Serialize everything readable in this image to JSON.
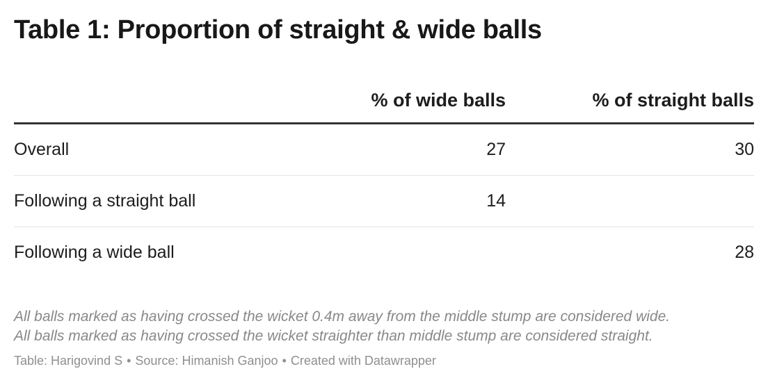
{
  "chart_data": {
    "type": "table",
    "title": "Table 1: Proportion of straight & wide balls",
    "columns": [
      "",
      "% of wide balls",
      "% of straight balls"
    ],
    "rows": [
      {
        "label": "Overall",
        "wide": "27",
        "straight": "30"
      },
      {
        "label": "Following a straight ball",
        "wide": "14",
        "straight": ""
      },
      {
        "label": "Following a wide ball",
        "wide": "",
        "straight": "28"
      }
    ],
    "notes": [
      "All balls marked as having crossed the wicket 0.4m away from the middle stump are considered wide.",
      "All balls marked as having crossed the wicket straighter than middle stump are considered straight."
    ],
    "footer": {
      "table_credit": "Table: Harigovind S",
      "source": "Source: Himanish Ganjoo",
      "created_with": "Created with Datawrapper",
      "separator": "•"
    }
  }
}
